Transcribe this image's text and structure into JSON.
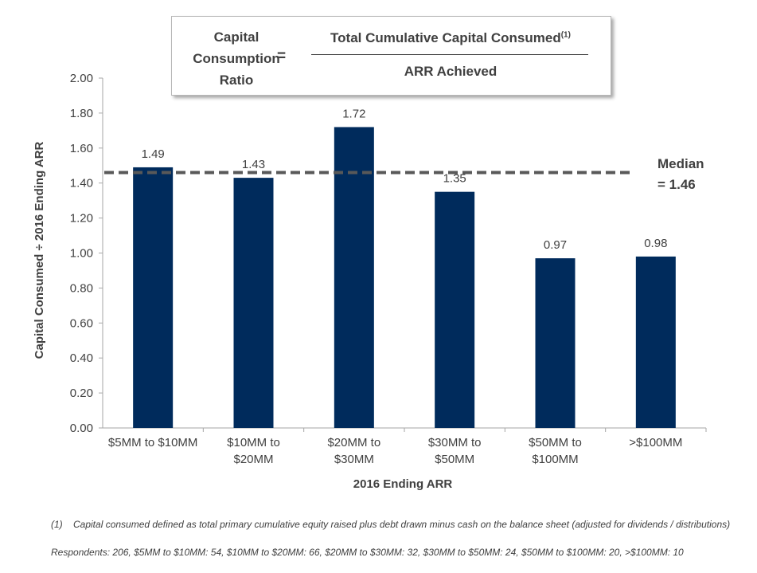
{
  "formula": {
    "name_lines": [
      "Capital",
      "Consumption",
      "Ratio"
    ],
    "equals": "=",
    "numerator": "Total Cumulative Capital Consumed",
    "numerator_note": "(1)",
    "denominator": "ARR Achieved"
  },
  "median": {
    "label_lines": [
      "Median",
      "= 1.46"
    ],
    "value": 1.46
  },
  "chart_data": {
    "type": "bar",
    "categories": [
      [
        "$5MM to $10MM"
      ],
      [
        "$10MM to",
        "$20MM"
      ],
      [
        "$20MM to",
        "$30MM"
      ],
      [
        "$30MM to",
        "$50MM"
      ],
      [
        "$50MM to",
        "$100MM"
      ],
      [
        ">$100MM"
      ]
    ],
    "values": [
      1.49,
      1.43,
      1.72,
      1.35,
      0.97,
      0.98
    ],
    "data_labels": [
      "1.49",
      "1.43",
      "1.72",
      "1.35",
      "0.97",
      "0.98"
    ],
    "xlabel": "2016 Ending ARR",
    "ylabel": "Capital Consumed ÷ 2016 Ending ARR",
    "ylim": [
      0,
      2.0
    ],
    "yticks": [
      "0.00",
      "0.20",
      "0.40",
      "0.60",
      "0.80",
      "1.00",
      "1.20",
      "1.40",
      "1.60",
      "1.80",
      "2.00"
    ],
    "reference_line": 1.46,
    "grid": false,
    "colors": {
      "bar": "#002b5c",
      "median_line": "#595959",
      "axis": "#a6a6a6",
      "text": "#404040"
    }
  },
  "footnotes": {
    "note_number": "(1)",
    "note_text": "Capital consumed defined as total primary cumulative equity raised plus debt drawn minus cash on the balance sheet (adjusted for dividends / distributions)",
    "respondents": "Respondents: 206, $5MM to $10MM: 54, $10MM to $20MM: 66, $20MM to $30MM: 32, $30MM to $50MM: 24, $50MM to $100MM: 20, >$100MM: 10"
  }
}
